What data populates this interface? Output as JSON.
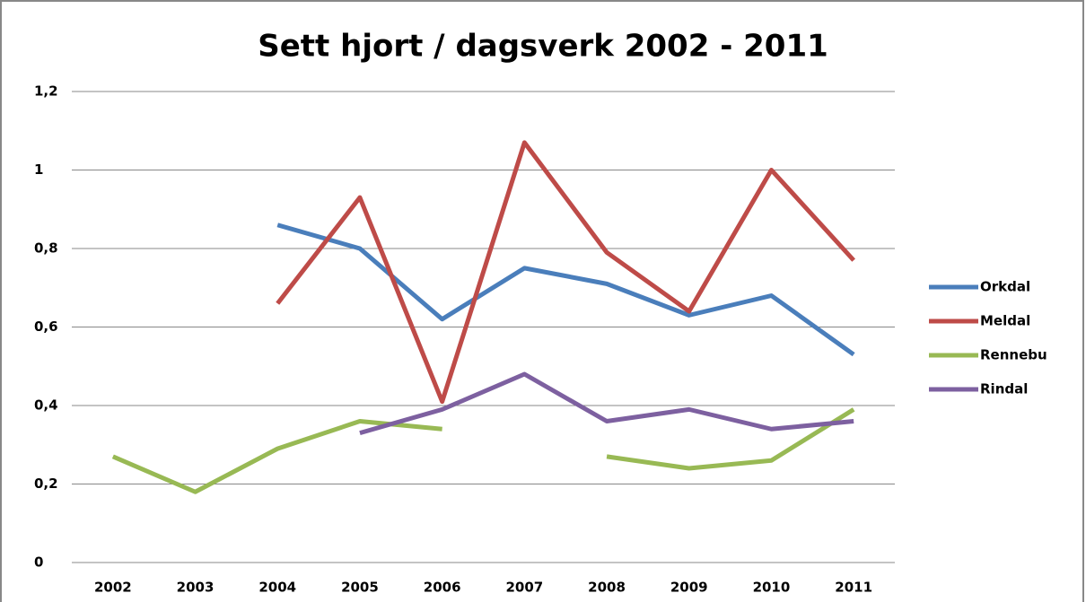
{
  "chart_data": {
    "type": "line",
    "title": "Sett hjort / dagsverk 2002 - 2011",
    "categories": [
      "2002",
      "2003",
      "2004",
      "2005",
      "2006",
      "2007",
      "2008",
      "2009",
      "2010",
      "2011"
    ],
    "series": [
      {
        "name": "Orkdal",
        "color": "#4a7ebb",
        "values": [
          null,
          null,
          0.86,
          0.8,
          0.62,
          0.75,
          0.71,
          0.63,
          0.68,
          0.53
        ]
      },
      {
        "name": "Meldal",
        "color": "#be4b48",
        "values": [
          null,
          null,
          0.66,
          0.93,
          0.41,
          1.07,
          0.79,
          0.64,
          1.0,
          0.77
        ]
      },
      {
        "name": "Rennebu",
        "color": "#98b954",
        "values": [
          0.27,
          0.18,
          0.29,
          0.36,
          0.34,
          null,
          0.27,
          0.24,
          0.26,
          0.39
        ]
      },
      {
        "name": "Rindal",
        "color": "#7d60a0",
        "values": [
          null,
          null,
          null,
          0.33,
          0.39,
          0.48,
          0.36,
          0.39,
          0.34,
          0.36
        ]
      }
    ],
    "ylim": [
      0,
      1.2
    ],
    "yticks": [
      0,
      {
        "value": 0.2,
        "label": "0,2"
      },
      {
        "value": 0.4,
        "label": "0,4"
      },
      {
        "value": 0.6,
        "label": "0,6"
      },
      {
        "value": 0.8,
        "label": "0,8"
      },
      1,
      {
        "value": 1.2,
        "label": "1,2"
      }
    ],
    "grid": true,
    "legend": "right"
  }
}
